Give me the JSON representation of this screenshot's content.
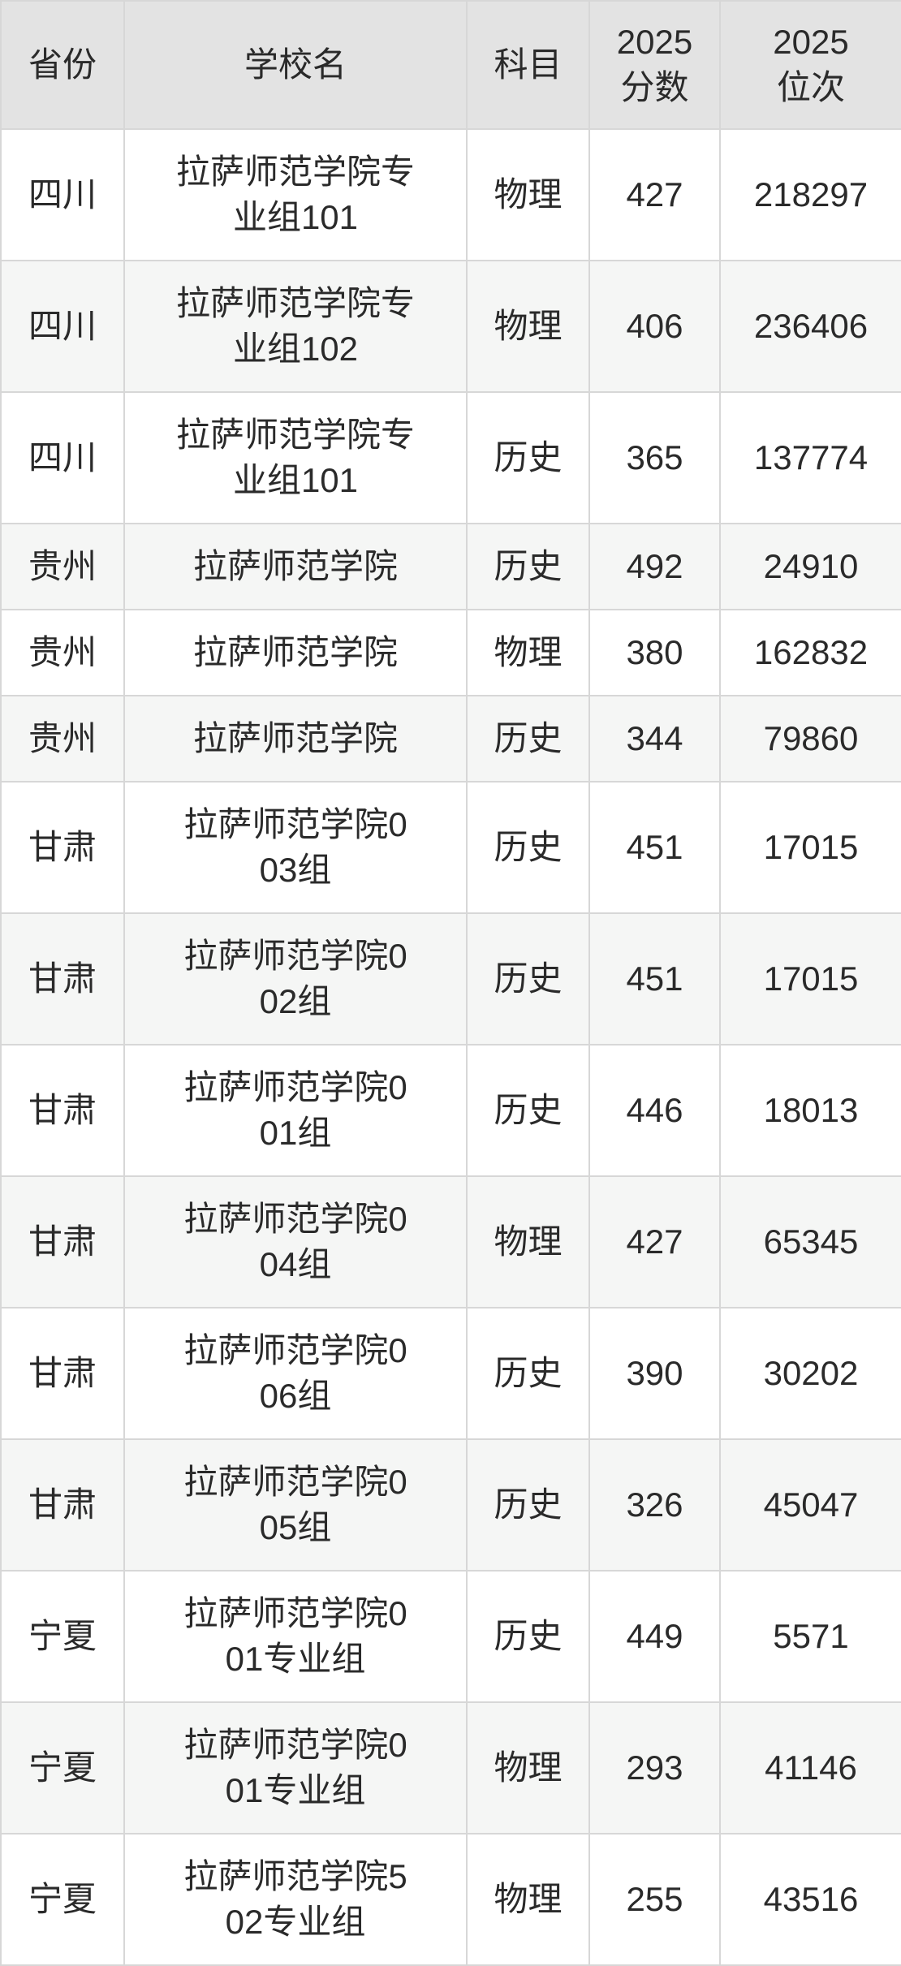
{
  "table": {
    "columns": [
      {
        "key": "province",
        "label_lines": [
          "省份"
        ]
      },
      {
        "key": "school",
        "label_lines": [
          "学校名"
        ]
      },
      {
        "key": "subject",
        "label_lines": [
          "科目"
        ]
      },
      {
        "key": "score",
        "label_lines": [
          "2025",
          "分数"
        ]
      },
      {
        "key": "rank",
        "label_lines": [
          "2025",
          "位次"
        ]
      }
    ],
    "rows": [
      {
        "province": "四川",
        "school": "拉萨师范学院专业组101",
        "school_lines": [
          "拉萨师范学院专",
          "业组101"
        ],
        "subject": "物理",
        "score": "427",
        "rank": "218297"
      },
      {
        "province": "四川",
        "school": "拉萨师范学院专业组102",
        "school_lines": [
          "拉萨师范学院专",
          "业组102"
        ],
        "subject": "物理",
        "score": "406",
        "rank": "236406"
      },
      {
        "province": "四川",
        "school": "拉萨师范学院专业组101",
        "school_lines": [
          "拉萨师范学院专",
          "业组101"
        ],
        "subject": "历史",
        "score": "365",
        "rank": "137774"
      },
      {
        "province": "贵州",
        "school": "拉萨师范学院",
        "school_lines": [
          "拉萨师范学院"
        ],
        "subject": "历史",
        "score": "492",
        "rank": "24910"
      },
      {
        "province": "贵州",
        "school": "拉萨师范学院",
        "school_lines": [
          "拉萨师范学院"
        ],
        "subject": "物理",
        "score": "380",
        "rank": "162832"
      },
      {
        "province": "贵州",
        "school": "拉萨师范学院",
        "school_lines": [
          "拉萨师范学院"
        ],
        "subject": "历史",
        "score": "344",
        "rank": "79860"
      },
      {
        "province": "甘肃",
        "school": "拉萨师范学院003组",
        "school_lines": [
          "拉萨师范学院0",
          "03组"
        ],
        "subject": "历史",
        "score": "451",
        "rank": "17015"
      },
      {
        "province": "甘肃",
        "school": "拉萨师范学院002组",
        "school_lines": [
          "拉萨师范学院0",
          "02组"
        ],
        "subject": "历史",
        "score": "451",
        "rank": "17015"
      },
      {
        "province": "甘肃",
        "school": "拉萨师范学院001组",
        "school_lines": [
          "拉萨师范学院0",
          "01组"
        ],
        "subject": "历史",
        "score": "446",
        "rank": "18013"
      },
      {
        "province": "甘肃",
        "school": "拉萨师范学院004组",
        "school_lines": [
          "拉萨师范学院0",
          "04组"
        ],
        "subject": "物理",
        "score": "427",
        "rank": "65345"
      },
      {
        "province": "甘肃",
        "school": "拉萨师范学院006组",
        "school_lines": [
          "拉萨师范学院0",
          "06组"
        ],
        "subject": "历史",
        "score": "390",
        "rank": "30202"
      },
      {
        "province": "甘肃",
        "school": "拉萨师范学院005组",
        "school_lines": [
          "拉萨师范学院0",
          "05组"
        ],
        "subject": "历史",
        "score": "326",
        "rank": "45047"
      },
      {
        "province": "宁夏",
        "school": "拉萨师范学院001专业组",
        "school_lines": [
          "拉萨师范学院0",
          "01专业组"
        ],
        "subject": "历史",
        "score": "449",
        "rank": "5571"
      },
      {
        "province": "宁夏",
        "school": "拉萨师范学院001专业组",
        "school_lines": [
          "拉萨师范学院0",
          "01专业组"
        ],
        "subject": "物理",
        "score": "293",
        "rank": "41146"
      },
      {
        "province": "宁夏",
        "school": "拉萨师范学院502专业组",
        "school_lines": [
          "拉萨师范学院5",
          "02专业组"
        ],
        "subject": "物理",
        "score": "255",
        "rank": "43516"
      }
    ]
  },
  "colors": {
    "header_background": "#e3e3e3",
    "row_alt_background": "#f5f6f5",
    "row_background": "#ffffff",
    "border": "#d7d7d7",
    "text": "#2a2a2a"
  }
}
